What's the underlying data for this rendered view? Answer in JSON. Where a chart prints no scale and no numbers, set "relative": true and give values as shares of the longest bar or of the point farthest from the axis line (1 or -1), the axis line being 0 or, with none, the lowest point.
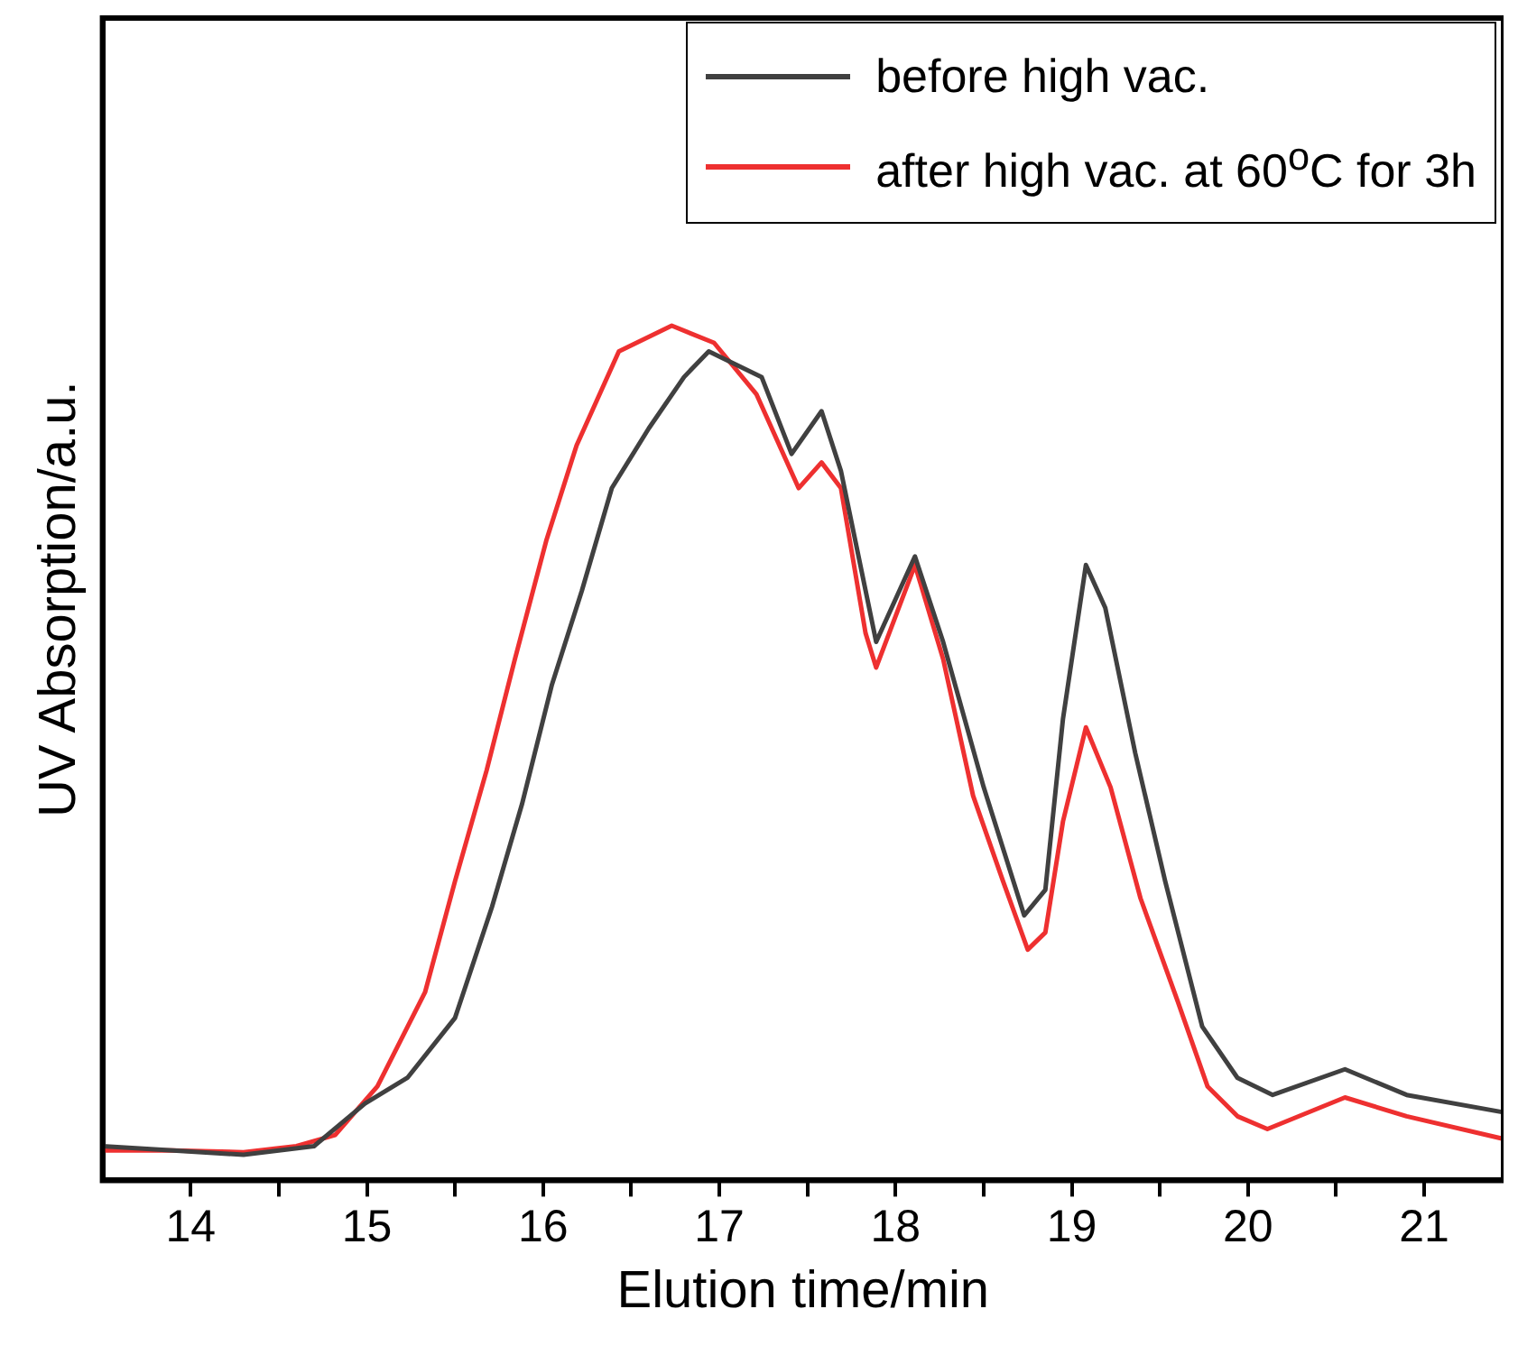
{
  "chart_data": {
    "type": "line",
    "xlabel": "Elution time/min",
    "ylabel": "UV Absorption/a.u.",
    "relative": true,
    "legend": "top right",
    "grid": false,
    "xlim": [
      13.5,
      21.45
    ],
    "xticks": [
      14,
      {
        "value": 14.5,
        "label": null
      },
      15,
      {
        "value": 15.5,
        "label": null
      },
      16,
      {
        "value": 16.5,
        "label": null
      },
      17,
      {
        "value": 17.5,
        "label": null
      },
      18,
      {
        "value": 18.5,
        "label": null
      },
      19,
      {
        "value": 19.5,
        "label": null
      },
      20,
      {
        "value": 20.5,
        "label": null
      },
      21
    ],
    "series": [
      {
        "name": "before high vac.",
        "color": "#404040",
        "x": [
          13.5,
          13.9,
          14.3,
          14.7,
          14.99,
          15.23,
          15.5,
          15.71,
          15.88,
          16.05,
          16.22,
          16.39,
          16.6,
          16.8,
          16.94,
          17.24,
          17.41,
          17.58,
          17.69,
          17.89,
          18.11,
          18.27,
          18.5,
          18.73,
          18.85,
          18.95,
          19.08,
          19.19,
          19.36,
          19.53,
          19.74,
          19.94,
          20.14,
          20.55,
          20.9,
          21.44
        ],
        "values": [
          0.04,
          0.035,
          0.03,
          0.04,
          0.09,
          0.12,
          0.19,
          0.32,
          0.44,
          0.58,
          0.69,
          0.81,
          0.88,
          0.94,
          0.97,
          0.94,
          0.85,
          0.9,
          0.83,
          0.63,
          0.73,
          0.63,
          0.46,
          0.31,
          0.34,
          0.54,
          0.72,
          0.67,
          0.5,
          0.35,
          0.18,
          0.12,
          0.1,
          0.13,
          0.1,
          0.08
        ]
      },
      {
        "name": "after high vac. at 60$^{o}$C for 3h",
        "color": "#ee3030",
        "x": [
          13.5,
          13.9,
          14.3,
          14.6,
          14.82,
          15.06,
          15.33,
          15.5,
          15.68,
          15.84,
          16.02,
          16.19,
          16.43,
          16.73,
          16.97,
          17.21,
          17.45,
          17.58,
          17.69,
          17.83,
          17.89,
          18.11,
          18.27,
          18.44,
          18.61,
          18.75,
          18.85,
          18.95,
          19.08,
          19.22,
          19.39,
          19.6,
          19.77,
          19.94,
          20.11,
          20.55,
          20.9,
          21.44
        ],
        "values": [
          0.035,
          0.035,
          0.033,
          0.04,
          0.053,
          0.11,
          0.22,
          0.35,
          0.48,
          0.61,
          0.75,
          0.86,
          0.97,
          1.0,
          0.98,
          0.92,
          0.81,
          0.84,
          0.81,
          0.64,
          0.6,
          0.72,
          0.61,
          0.45,
          0.35,
          0.27,
          0.29,
          0.42,
          0.53,
          0.46,
          0.33,
          0.21,
          0.11,
          0.075,
          0.06,
          0.097,
          0.075,
          0.049
        ]
      }
    ]
  }
}
